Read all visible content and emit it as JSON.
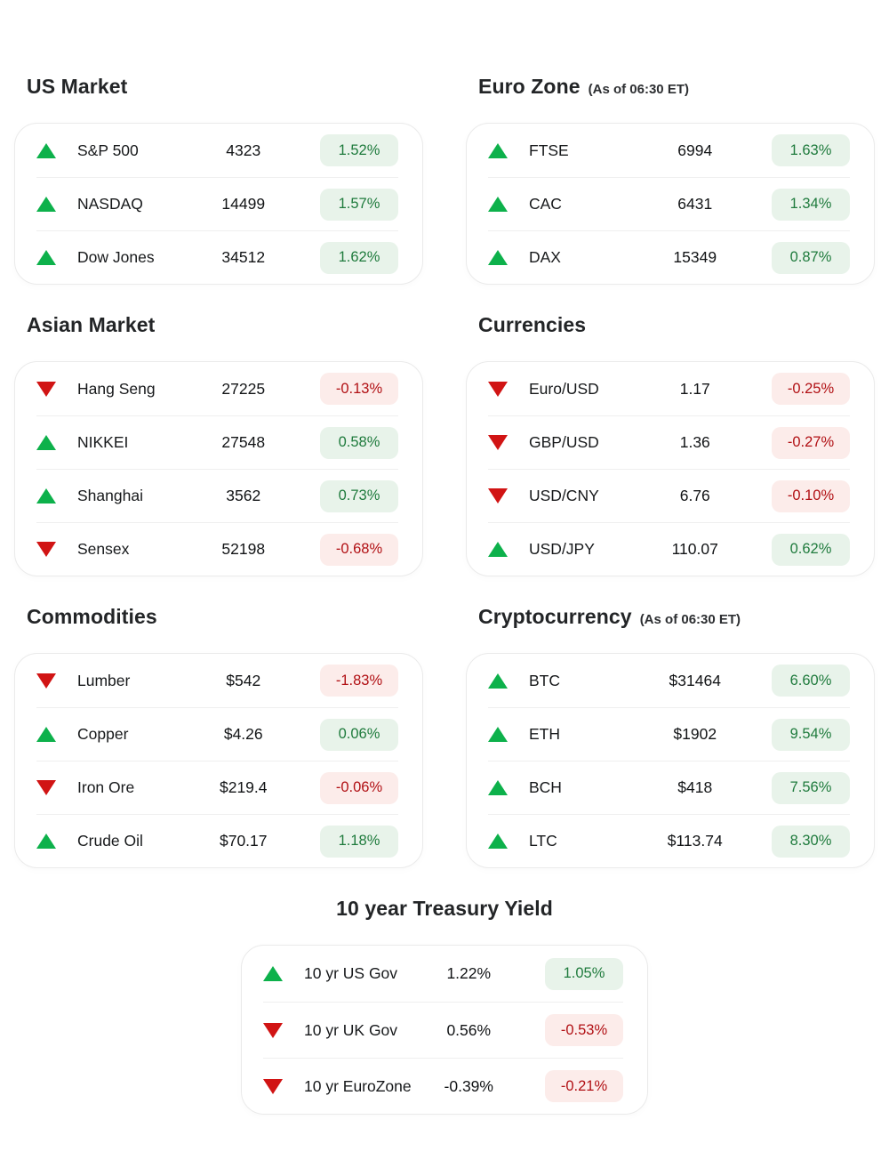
{
  "colors": {
    "up": "#0db14b",
    "down": "#d11414",
    "up_badge_bg": "#e8f3ea",
    "up_badge_text": "#1f7b3d",
    "down_badge_bg": "#fcecea",
    "down_badge_text": "#b11014"
  },
  "sections": {
    "us_market": {
      "title": "US Market",
      "rows": [
        {
          "direction": "up",
          "name": "S&P 500",
          "value": "4323",
          "change": "1.52%"
        },
        {
          "direction": "up",
          "name": "NASDAQ",
          "value": "14499",
          "change": "1.57%"
        },
        {
          "direction": "up",
          "name": "Dow Jones",
          "value": "34512",
          "change": "1.62%"
        }
      ]
    },
    "euro_zone": {
      "title": "Euro Zone",
      "note": "(As of 06:30 ET)",
      "rows": [
        {
          "direction": "up",
          "name": "FTSE",
          "value": "6994",
          "change": "1.63%"
        },
        {
          "direction": "up",
          "name": "CAC",
          "value": "6431",
          "change": "1.34%"
        },
        {
          "direction": "up",
          "name": "DAX",
          "value": "15349",
          "change": "0.87%"
        }
      ]
    },
    "asian_market": {
      "title": "Asian Market",
      "rows": [
        {
          "direction": "down",
          "name": "Hang Seng",
          "value": "27225",
          "change": "-0.13%"
        },
        {
          "direction": "up",
          "name": "NIKKEI",
          "value": "27548",
          "change": "0.58%"
        },
        {
          "direction": "up",
          "name": "Shanghai",
          "value": "3562",
          "change": "0.73%"
        },
        {
          "direction": "down",
          "name": "Sensex",
          "value": "52198",
          "change": "-0.68%"
        }
      ]
    },
    "currencies": {
      "title": "Currencies",
      "rows": [
        {
          "direction": "down",
          "name": "Euro/USD",
          "value": "1.17",
          "change": "-0.25%"
        },
        {
          "direction": "down",
          "name": "GBP/USD",
          "value": "1.36",
          "change": "-0.27%"
        },
        {
          "direction": "down",
          "name": "USD/CNY",
          "value": "6.76",
          "change": "-0.10%"
        },
        {
          "direction": "up",
          "name": "USD/JPY",
          "value": "110.07",
          "change": "0.62%"
        }
      ]
    },
    "commodities": {
      "title": "Commodities",
      "rows": [
        {
          "direction": "down",
          "name": "Lumber",
          "value": "$542",
          "change": "-1.83%"
        },
        {
          "direction": "up",
          "name": "Copper",
          "value": "$4.26",
          "change": "0.06%"
        },
        {
          "direction": "down",
          "name": "Iron Ore",
          "value": "$219.4",
          "change": "-0.06%"
        },
        {
          "direction": "up",
          "name": "Crude Oil",
          "value": "$70.17",
          "change": "1.18%"
        }
      ]
    },
    "cryptocurrency": {
      "title": "Cryptocurrency",
      "note": "(As of 06:30 ET)",
      "rows": [
        {
          "direction": "up",
          "name": "BTC",
          "value": "$31464",
          "change": "6.60%"
        },
        {
          "direction": "up",
          "name": "ETH",
          "value": "$1902",
          "change": "9.54%"
        },
        {
          "direction": "up",
          "name": "BCH",
          "value": "$418",
          "change": "7.56%"
        },
        {
          "direction": "up",
          "name": "LTC",
          "value": "$113.74",
          "change": "8.30%"
        }
      ]
    },
    "treasury": {
      "title": "10 year Treasury Yield",
      "rows": [
        {
          "direction": "up",
          "name": "10 yr US Gov",
          "value": "1.22%",
          "change": "1.05%"
        },
        {
          "direction": "down",
          "name": "10 yr UK Gov",
          "value": "0.56%",
          "change": "-0.53%"
        },
        {
          "direction": "down",
          "name": "10 yr EuroZone",
          "value": "-0.39%",
          "change": "-0.21%"
        }
      ]
    }
  }
}
